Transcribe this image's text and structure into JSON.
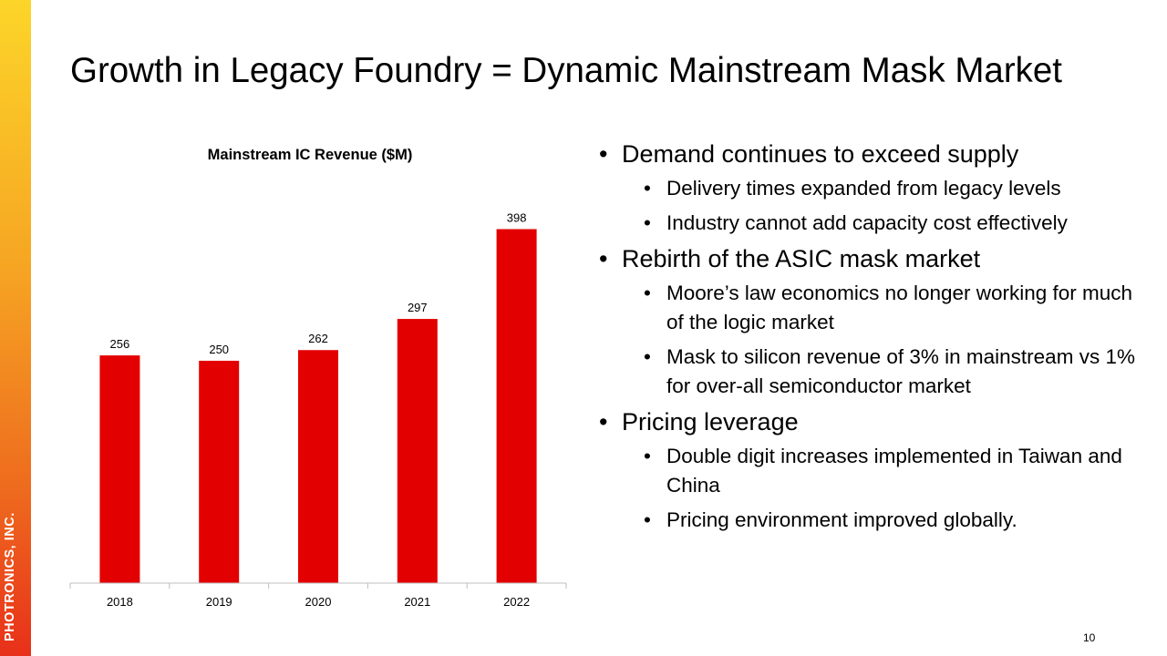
{
  "sidebar": {
    "company": "PHOTRONICS, INC."
  },
  "title": "Growth in Legacy Foundry = Dynamic Mainstream Mask Market",
  "chart_data": {
    "type": "bar",
    "title": "Mainstream  IC Revenue ($M)",
    "categories": [
      "2018",
      "2019",
      "2020",
      "2021",
      "2022"
    ],
    "values": [
      256,
      250,
      262,
      297,
      398
    ],
    "data_labels": [
      "256",
      "250",
      "262",
      "297",
      "398"
    ],
    "ylim": [
      0,
      420
    ],
    "bar_color": "#e30000",
    "grid": false,
    "legend": "none"
  },
  "bullets": [
    {
      "text": "Demand continues to exceed supply",
      "subs": [
        "Delivery times expanded from legacy levels",
        "Industry cannot add capacity cost effectively"
      ]
    },
    {
      "text": "Rebirth of the ASIC mask market",
      "subs": [
        "Moore’s law economics no longer working for much of the logic market",
        "Mask to silicon revenue of 3% in mainstream vs 1% for over-all semiconductor market"
      ]
    },
    {
      "text": "Pricing leverage",
      "subs": [
        "Double digit increases implemented in Taiwan and China",
        "Pricing environment improved globally."
      ]
    }
  ],
  "page_number": "10",
  "colors": {
    "accent_top": "#fcd529",
    "accent_bottom": "#e8301a",
    "bar": "#e30000"
  }
}
